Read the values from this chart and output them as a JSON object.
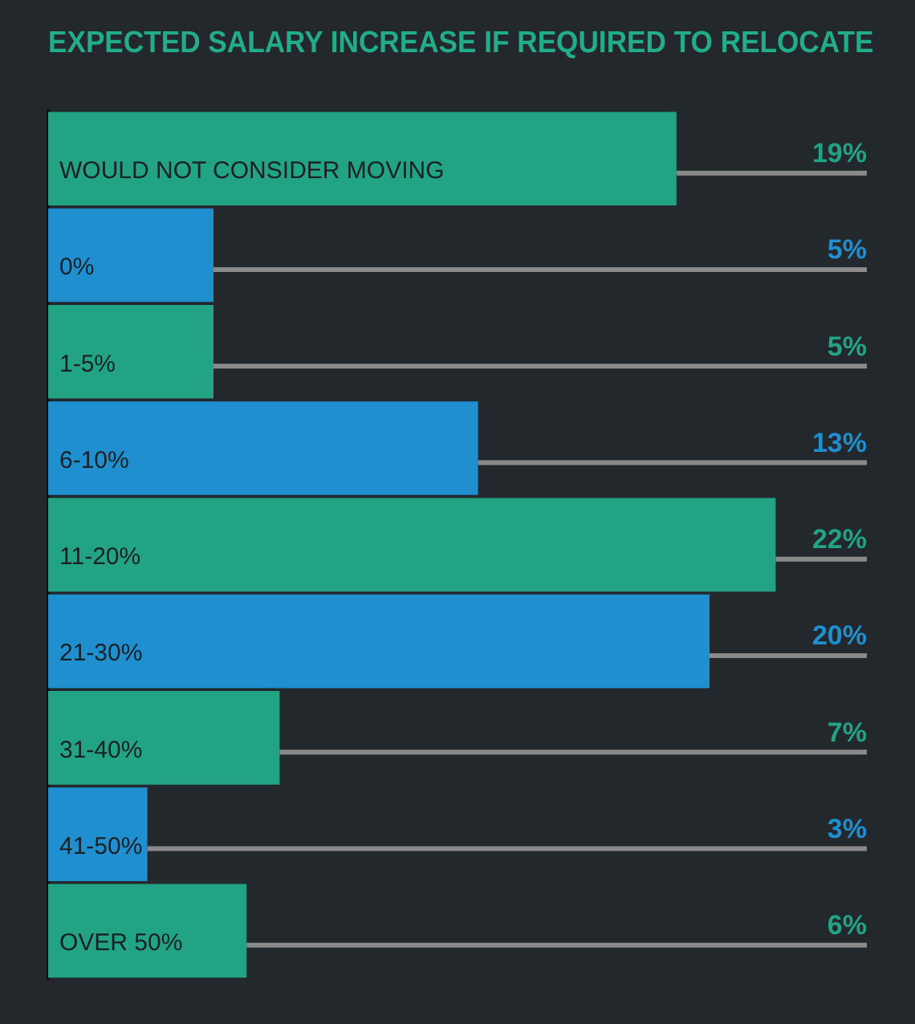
{
  "chart_data": {
    "type": "bar",
    "orientation": "horizontal",
    "title": "EXPECTED SALARY INCREASE IF REQUIRED TO RELOCATE",
    "categories": [
      "WOULD NOT CONSIDER MOVING",
      "0%",
      "1-5%",
      "6-10%",
      "11-20%",
      "21-30%",
      "31-40%",
      "41-50%",
      "OVER 50%"
    ],
    "values": [
      19,
      5,
      5,
      13,
      22,
      20,
      7,
      3,
      6
    ],
    "colors": [
      "#22a484",
      "#1f8fcf",
      "#22a484",
      "#1f8fcf",
      "#22a484",
      "#1f8fcf",
      "#22a484",
      "#1f8fcf",
      "#22a484"
    ],
    "value_labels": [
      "19%",
      "5%",
      "5%",
      "13%",
      "22%",
      "20%",
      "7%",
      "3%",
      "6%"
    ],
    "grid": "y",
    "legend": false
  }
}
